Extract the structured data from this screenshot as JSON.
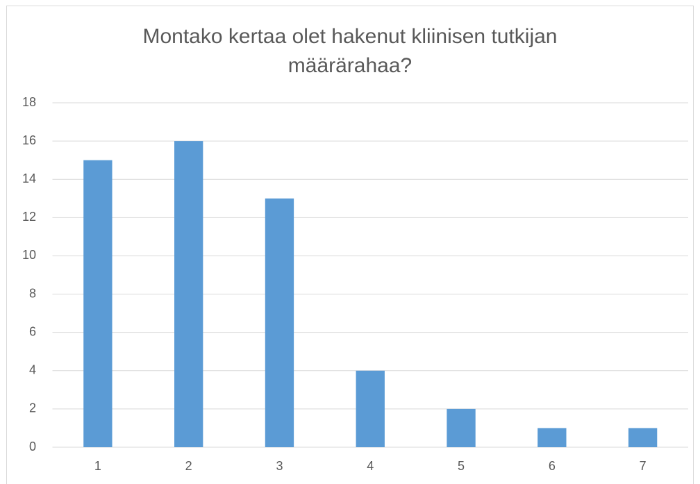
{
  "chart_data": {
    "type": "bar",
    "title": "Montako kertaa olet hakenut kliinisen tutkijan määrärahaa?",
    "categories": [
      "1",
      "2",
      "3",
      "4",
      "5",
      "6",
      "7"
    ],
    "values": [
      15,
      16,
      13,
      4,
      2,
      1,
      1
    ],
    "color": "#5b9bd5",
    "ylim": [
      0,
      18
    ],
    "yticks": [
      0,
      2,
      4,
      6,
      8,
      10,
      12,
      14,
      16,
      18
    ],
    "grid": true
  }
}
